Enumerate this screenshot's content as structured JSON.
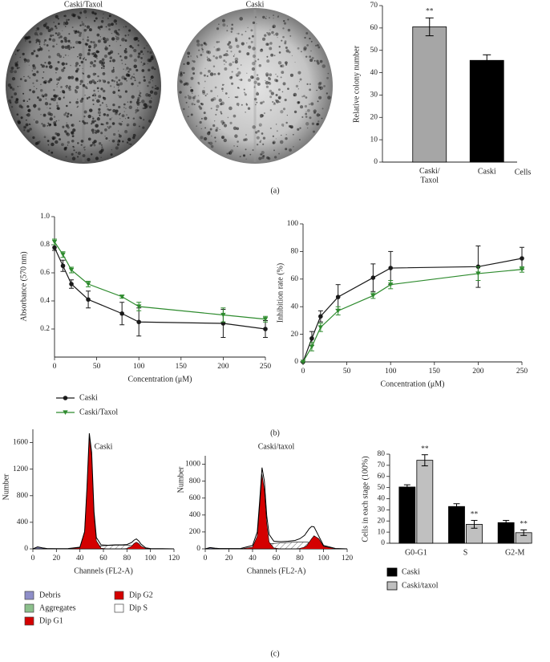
{
  "images": [
    {
      "title": "Caski/Taxol"
    },
    {
      "title": "Caski"
    }
  ],
  "panel_labels": [
    "(a)",
    "(b)",
    "(c)"
  ],
  "chart_data": [
    {
      "type": "bar",
      "ylabel": "Relative colony number",
      "xlabel": "Cells",
      "categories": [
        "Caski/\nTaxol",
        "Caski"
      ],
      "values": [
        60.5,
        45.5
      ],
      "errors": [
        4,
        2.5
      ],
      "colors": [
        "#a6a6a6",
        "#000000"
      ],
      "significance": [
        "**",
        null
      ],
      "ylim": [
        0,
        70
      ],
      "yticks": [
        0,
        10,
        20,
        30,
        40,
        50,
        60,
        70
      ]
    },
    {
      "type": "line",
      "ylabel": "Absorbance (570 nm)",
      "xlabel": "Concentration (μM)",
      "x": [
        0,
        10,
        20,
        40,
        80,
        100,
        200,
        250
      ],
      "series": [
        {
          "name": "Caski",
          "color": "#1a1a1a",
          "marker": "circle",
          "values": [
            0.78,
            0.65,
            0.52,
            0.41,
            0.31,
            0.25,
            0.24,
            0.2
          ],
          "errors": [
            0.02,
            0.04,
            0.03,
            0.06,
            0.08,
            0.1,
            0.1,
            0.06
          ]
        },
        {
          "name": "Caski/Taxol",
          "color": "#2e8b2e",
          "marker": "triangle-down",
          "values": [
            0.82,
            0.73,
            0.62,
            0.52,
            0.43,
            0.36,
            0.3,
            0.27
          ],
          "errors": [
            0.02,
            0.02,
            0.02,
            0.02,
            0.01,
            0.03,
            0.05,
            0.02
          ]
        }
      ],
      "xlim": [
        0,
        250
      ],
      "xticks": [
        0,
        50,
        100,
        150,
        200,
        250
      ],
      "ylim": [
        0,
        1
      ],
      "yticks": [
        0.2,
        0.4,
        0.6,
        0.8,
        {
          "value": 1,
          "label": "1.0"
        }
      ],
      "legend": "below"
    },
    {
      "type": "line",
      "ylabel": "Inhibition rate (%)",
      "xlabel": "Concentration (μM)",
      "x": [
        0,
        10,
        20,
        40,
        80,
        100,
        200,
        250
      ],
      "series": [
        {
          "color": "#1a1a1a",
          "marker": "circle",
          "values": [
            0,
            17,
            33,
            47,
            61,
            68,
            69,
            75
          ],
          "errors": [
            0,
            5,
            4,
            9,
            10,
            12,
            15,
            8
          ]
        },
        {
          "color": "#2e8b2e",
          "marker": "triangle-down",
          "values": [
            0,
            11,
            25,
            37,
            48,
            56,
            64,
            67
          ],
          "errors": [
            0,
            3,
            3,
            3,
            2,
            3,
            5,
            2
          ]
        }
      ],
      "xlim": [
        0,
        250
      ],
      "xticks": [
        0,
        50,
        100,
        150,
        200,
        250
      ],
      "ylim": [
        0,
        100
      ],
      "yticks": [
        0,
        20,
        40,
        60,
        80,
        100
      ]
    },
    {
      "type": "area",
      "title": "Caski",
      "xlabel": "Channels (FL2-A)",
      "ylabel": "Number",
      "x": [
        0,
        4,
        8,
        12,
        20,
        30,
        40,
        44,
        46,
        48,
        50,
        52,
        54,
        58,
        64,
        70,
        76,
        80,
        84,
        86,
        88,
        90,
        92,
        96,
        100,
        110,
        120
      ],
      "series": [
        {
          "name": "Debris",
          "color": "#8e8ec8",
          "values": [
            0,
            30,
            15,
            5,
            2,
            0,
            0,
            0,
            0,
            0,
            0,
            0,
            0,
            0,
            0,
            0,
            0,
            0,
            0,
            0,
            0,
            0,
            0,
            0,
            0,
            0,
            0
          ]
        },
        {
          "name": "Aggregates",
          "color": "#8cc08c",
          "values": [
            0,
            0,
            0,
            0,
            0,
            0,
            0,
            0,
            0,
            0,
            0,
            0,
            0,
            0,
            0,
            0,
            0,
            0,
            0,
            0,
            0,
            0,
            0,
            0,
            3,
            2,
            0
          ]
        },
        {
          "name": "Dip G1",
          "color": "#d40000",
          "values": [
            0,
            0,
            0,
            0,
            0,
            0,
            20,
            250,
            900,
            1700,
            1400,
            500,
            120,
            10,
            0,
            0,
            0,
            0,
            0,
            0,
            0,
            0,
            0,
            0,
            0,
            0,
            0
          ]
        },
        {
          "name": "Dip G2",
          "color": "#d40000",
          "values": [
            0,
            0,
            0,
            0,
            0,
            0,
            0,
            0,
            0,
            0,
            0,
            0,
            0,
            0,
            0,
            0,
            0,
            5,
            40,
            80,
            100,
            80,
            40,
            5,
            0,
            0,
            0
          ]
        },
        {
          "name": "Dip S",
          "color": "#ffffff",
          "style": "hatch",
          "values": [
            0,
            0,
            0,
            0,
            0,
            0,
            0,
            0,
            10,
            20,
            30,
            35,
            40,
            45,
            50,
            55,
            55,
            55,
            50,
            45,
            40,
            30,
            20,
            5,
            0,
            0,
            0
          ]
        },
        {
          "color": "#000000",
          "style": "outline",
          "values": [
            0,
            30,
            15,
            5,
            3,
            5,
            25,
            260,
            920,
            1740,
            1450,
            560,
            170,
            60,
            55,
            60,
            60,
            65,
            95,
            130,
            150,
            120,
            70,
            15,
            5,
            3,
            0
          ]
        }
      ],
      "xlim": [
        0,
        120
      ],
      "xticks": [
        0,
        20,
        40,
        60,
        80,
        100,
        120
      ],
      "ylim": [
        0,
        1800
      ],
      "yticks": [
        0,
        400,
        800,
        1200,
        1600
      ],
      "legend": "below"
    },
    {
      "type": "area",
      "title": "Caski/taxol",
      "xlabel": "Channels (FL2-A)",
      "ylabel": "Number",
      "x": [
        0,
        4,
        8,
        12,
        20,
        30,
        40,
        44,
        46,
        48,
        50,
        52,
        54,
        58,
        64,
        70,
        76,
        80,
        84,
        86,
        88,
        90,
        92,
        96,
        100,
        110,
        120
      ],
      "series": [
        {
          "color": "#8e8ec8",
          "values": [
            0,
            15,
            8,
            4,
            2,
            0,
            0,
            0,
            0,
            0,
            0,
            0,
            0,
            0,
            0,
            0,
            0,
            0,
            0,
            0,
            0,
            0,
            0,
            0,
            0,
            0,
            0
          ]
        },
        {
          "color": "#8cc08c",
          "values": [
            0,
            0,
            0,
            0,
            0,
            0,
            0,
            0,
            0,
            0,
            0,
            0,
            0,
            0,
            0,
            0,
            0,
            0,
            0,
            0,
            0,
            0,
            0,
            0,
            3,
            2,
            0
          ]
        },
        {
          "color": "#d40000",
          "values": [
            0,
            0,
            0,
            0,
            0,
            0,
            20,
            150,
            500,
            880,
            700,
            300,
            80,
            10,
            0,
            0,
            0,
            0,
            0,
            0,
            0,
            0,
            0,
            0,
            0,
            0,
            0
          ]
        },
        {
          "color": "#d40000",
          "values": [
            0,
            0,
            0,
            0,
            0,
            0,
            0,
            0,
            0,
            0,
            0,
            0,
            0,
            0,
            0,
            0,
            0,
            5,
            20,
            40,
            80,
            120,
            155,
            120,
            30,
            0,
            0
          ]
        },
        {
          "color": "#ffffff",
          "style": "hatch",
          "values": [
            0,
            0,
            0,
            0,
            0,
            0,
            0,
            0,
            15,
            30,
            45,
            55,
            60,
            65,
            70,
            75,
            80,
            80,
            80,
            80,
            75,
            70,
            60,
            30,
            5,
            0,
            0
          ]
        },
        {
          "color": "#000000",
          "style": "outline",
          "values": [
            0,
            15,
            8,
            4,
            3,
            5,
            40,
            200,
            560,
            960,
            800,
            390,
            170,
            90,
            85,
            90,
            100,
            120,
            160,
            200,
            240,
            265,
            260,
            150,
            40,
            5,
            0
          ]
        }
      ],
      "xlim": [
        0,
        120
      ],
      "xticks": [
        0,
        20,
        40,
        60,
        80,
        100,
        120
      ],
      "ylim": [
        0,
        1100
      ],
      "yticks": [
        0,
        200,
        400,
        600,
        800,
        1000
      ]
    },
    {
      "type": "bar",
      "ylabel": "Cells in each stage (100%)",
      "categories": [
        "G0-G1",
        "S",
        "G2-M"
      ],
      "series": [
        {
          "name": "Caski",
          "color": "#000000",
          "values": [
            50.5,
            33,
            18.5
          ],
          "errors": [
            2,
            2.5,
            2
          ]
        },
        {
          "name": "Caski/taxol",
          "color": "#c0c0c0",
          "values": [
            74.5,
            17,
            9.5
          ],
          "errors": [
            5,
            3.5,
            2.5
          ],
          "significance": [
            "**",
            "**",
            "**"
          ]
        }
      ],
      "ylim": [
        0,
        80
      ],
      "yticks": [
        0,
        10,
        20,
        30,
        40,
        50,
        60,
        70,
        80
      ],
      "legend": "below"
    }
  ]
}
